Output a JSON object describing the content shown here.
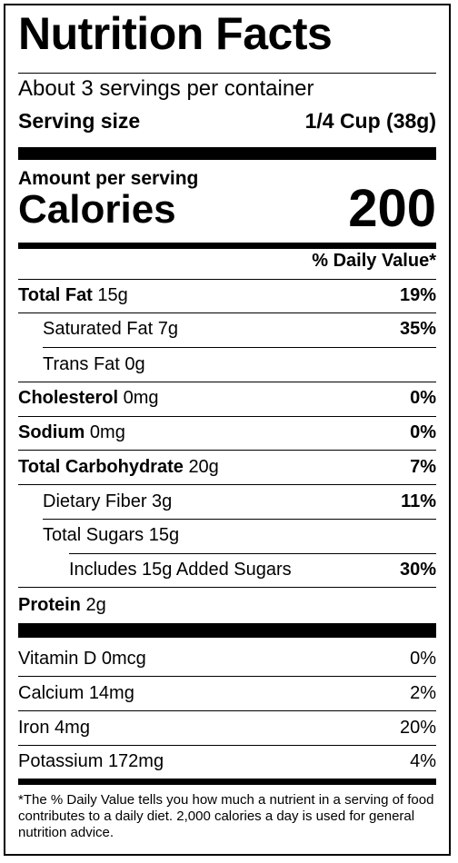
{
  "title": "Nutrition Facts",
  "servings_per_container": "About 3 servings per container",
  "serving_size": {
    "label": "Serving size",
    "value": "1/4 Cup (38g)"
  },
  "amount_per_serving": "Amount per serving",
  "calories": {
    "label": "Calories",
    "value": "200"
  },
  "daily_value_header": "% Daily Value*",
  "nutrients": [
    {
      "name": "Total Fat",
      "amount": "15g",
      "dv": "19%"
    },
    {
      "name": "Saturated Fat",
      "amount": "7g",
      "dv": "35%"
    },
    {
      "name": "Trans Fat",
      "amount": "0g",
      "dv": ""
    },
    {
      "name": "Cholesterol",
      "amount": "0mg",
      "dv": "0%"
    },
    {
      "name": "Sodium",
      "amount": "0mg",
      "dv": "0%"
    },
    {
      "name": "Total Carbohydrate",
      "amount": "20g",
      "dv": "7%"
    },
    {
      "name": "Dietary Fiber",
      "amount": "3g",
      "dv": "11%"
    },
    {
      "name": "Total Sugars",
      "amount": "15g",
      "dv": ""
    },
    {
      "name": "Includes 15g Added Sugars",
      "amount": "",
      "dv": "30%"
    },
    {
      "name": "Protein",
      "amount": "2g",
      "dv": ""
    }
  ],
  "vitamins": [
    {
      "name": "Vitamin D",
      "amount": "0mcg",
      "dv": "0%"
    },
    {
      "name": "Calcium",
      "amount": "14mg",
      "dv": "2%"
    },
    {
      "name": "Iron",
      "amount": "4mg",
      "dv": "20%"
    },
    {
      "name": "Potassium",
      "amount": "172mg",
      "dv": "4%"
    }
  ],
  "footnote": "*The % Daily Value tells you how much a nutrient in a serving of food contributes to a daily diet. 2,000 calories a day is used for general nutrition advice."
}
